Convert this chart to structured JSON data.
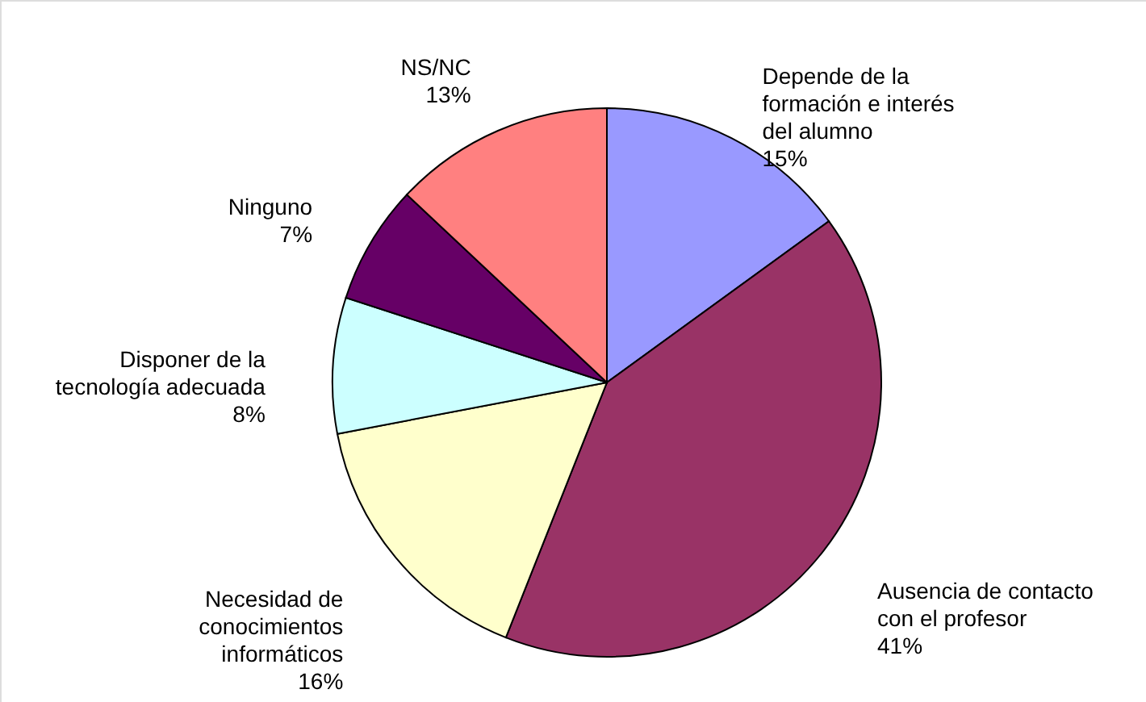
{
  "chart_data": {
    "type": "pie",
    "categories": [
      "Depende de la\nformación e interés\ndel alumno",
      "Ausencia de contacto\ncon el profesor",
      "Necesidad de\nconocimientos\ninformáticos",
      "Disponer de la\ntecnología adecuada",
      "Ninguno",
      "NS/NC"
    ],
    "values": [
      15,
      41,
      16,
      8,
      7,
      13
    ],
    "value_labels": [
      "15%",
      "41%",
      "16%",
      "8%",
      "7%",
      "13%"
    ],
    "colors": [
      "#9999ff",
      "#993366",
      "#ffffcc",
      "#ccffff",
      "#660066",
      "#ff8080"
    ]
  }
}
